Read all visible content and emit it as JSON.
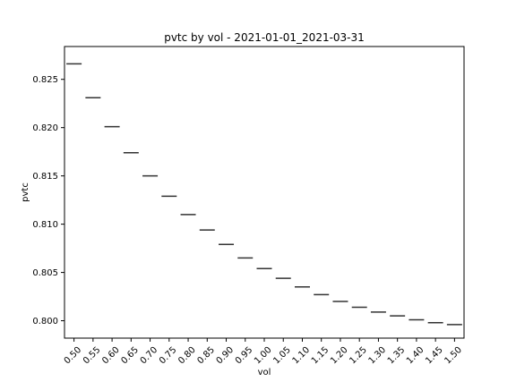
{
  "chart_data": {
    "type": "box",
    "title": "pvtc by vol - 2021-01-01_2021-03-31",
    "xlabel": "vol",
    "ylabel": "pvtc",
    "categories": [
      "0.50",
      "0.55",
      "0.60",
      "0.65",
      "0.70",
      "0.75",
      "0.80",
      "0.85",
      "0.90",
      "0.95",
      "1.00",
      "1.05",
      "1.10",
      "1.15",
      "1.20",
      "1.25",
      "1.30",
      "1.35",
      "1.40",
      "1.45",
      "1.50"
    ],
    "values": [
      0.8266,
      0.8231,
      0.8201,
      0.8174,
      0.815,
      0.8129,
      0.811,
      0.8094,
      0.8079,
      0.8065,
      0.8054,
      0.8044,
      0.8035,
      0.8027,
      0.802,
      0.8014,
      0.8009,
      0.8005,
      0.8001,
      0.7998,
      0.7996
    ],
    "ylim": [
      0.7982,
      0.8284
    ],
    "yticks": [
      0.8,
      0.805,
      0.81,
      0.815,
      0.82,
      0.825
    ],
    "ytick_labels": [
      "0.800",
      "0.805",
      "0.810",
      "0.815",
      "0.820",
      "0.825"
    ],
    "grid": false,
    "line_color": "#333333"
  }
}
